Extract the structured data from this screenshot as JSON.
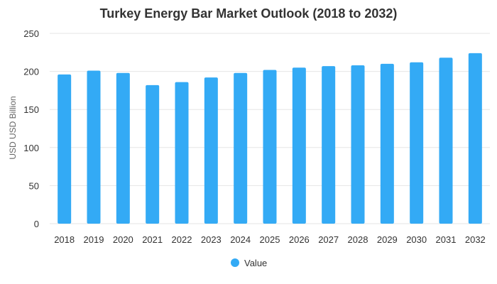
{
  "chart_data": {
    "type": "bar",
    "title": "Turkey Energy Bar Market Outlook (2018 to 2032)",
    "xlabel": "",
    "ylabel": "USD USD Billion",
    "categories": [
      "2018",
      "2019",
      "2020",
      "2021",
      "2022",
      "2023",
      "2024",
      "2025",
      "2026",
      "2027",
      "2028",
      "2029",
      "2030",
      "2031",
      "2032"
    ],
    "series": [
      {
        "name": "Value",
        "values": [
          196,
          201,
          198,
          182,
          186,
          192,
          198,
          202,
          205,
          207,
          208,
          210,
          212,
          218,
          224
        ]
      }
    ],
    "ylim": [
      0,
      250
    ],
    "yticks": [
      0,
      50,
      100,
      150,
      200,
      250
    ],
    "grid": true,
    "legend_position": "bottom",
    "colors": {
      "bar": "#33aaf5",
      "grid": "#e6e6e6",
      "text": "#333333"
    }
  }
}
